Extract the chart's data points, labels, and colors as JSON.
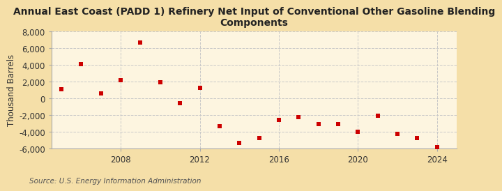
{
  "title": "Annual East Coast (PADD 1) Refinery Net Input of Conventional Other Gasoline Blending\nComponents",
  "ylabel": "Thousand Barrels",
  "source": "Source: U.S. Energy Information Administration",
  "background_color": "#f5dfa8",
  "plot_background_color": "#fdf5e0",
  "grid_color": "#c8c8c8",
  "marker_color": "#cc0000",
  "years": [
    2005,
    2006,
    2007,
    2008,
    2009,
    2010,
    2011,
    2012,
    2013,
    2014,
    2015,
    2016,
    2017,
    2018,
    2019,
    2020,
    2021,
    2022,
    2023,
    2024
  ],
  "values": [
    1100,
    4100,
    600,
    2200,
    6700,
    1900,
    -600,
    1300,
    -3300,
    -5300,
    -4700,
    -2600,
    -2200,
    -3100,
    -3100,
    -4000,
    -2100,
    -4200,
    -4700,
    -5800
  ],
  "ylim": [
    -6000,
    8000
  ],
  "yticks": [
    -6000,
    -4000,
    -2000,
    0,
    2000,
    4000,
    6000,
    8000
  ],
  "xlim": [
    2004.5,
    2025
  ],
  "xticks": [
    2008,
    2012,
    2016,
    2020,
    2024
  ],
  "title_fontsize": 10,
  "axis_fontsize": 8.5,
  "source_fontsize": 7.5
}
